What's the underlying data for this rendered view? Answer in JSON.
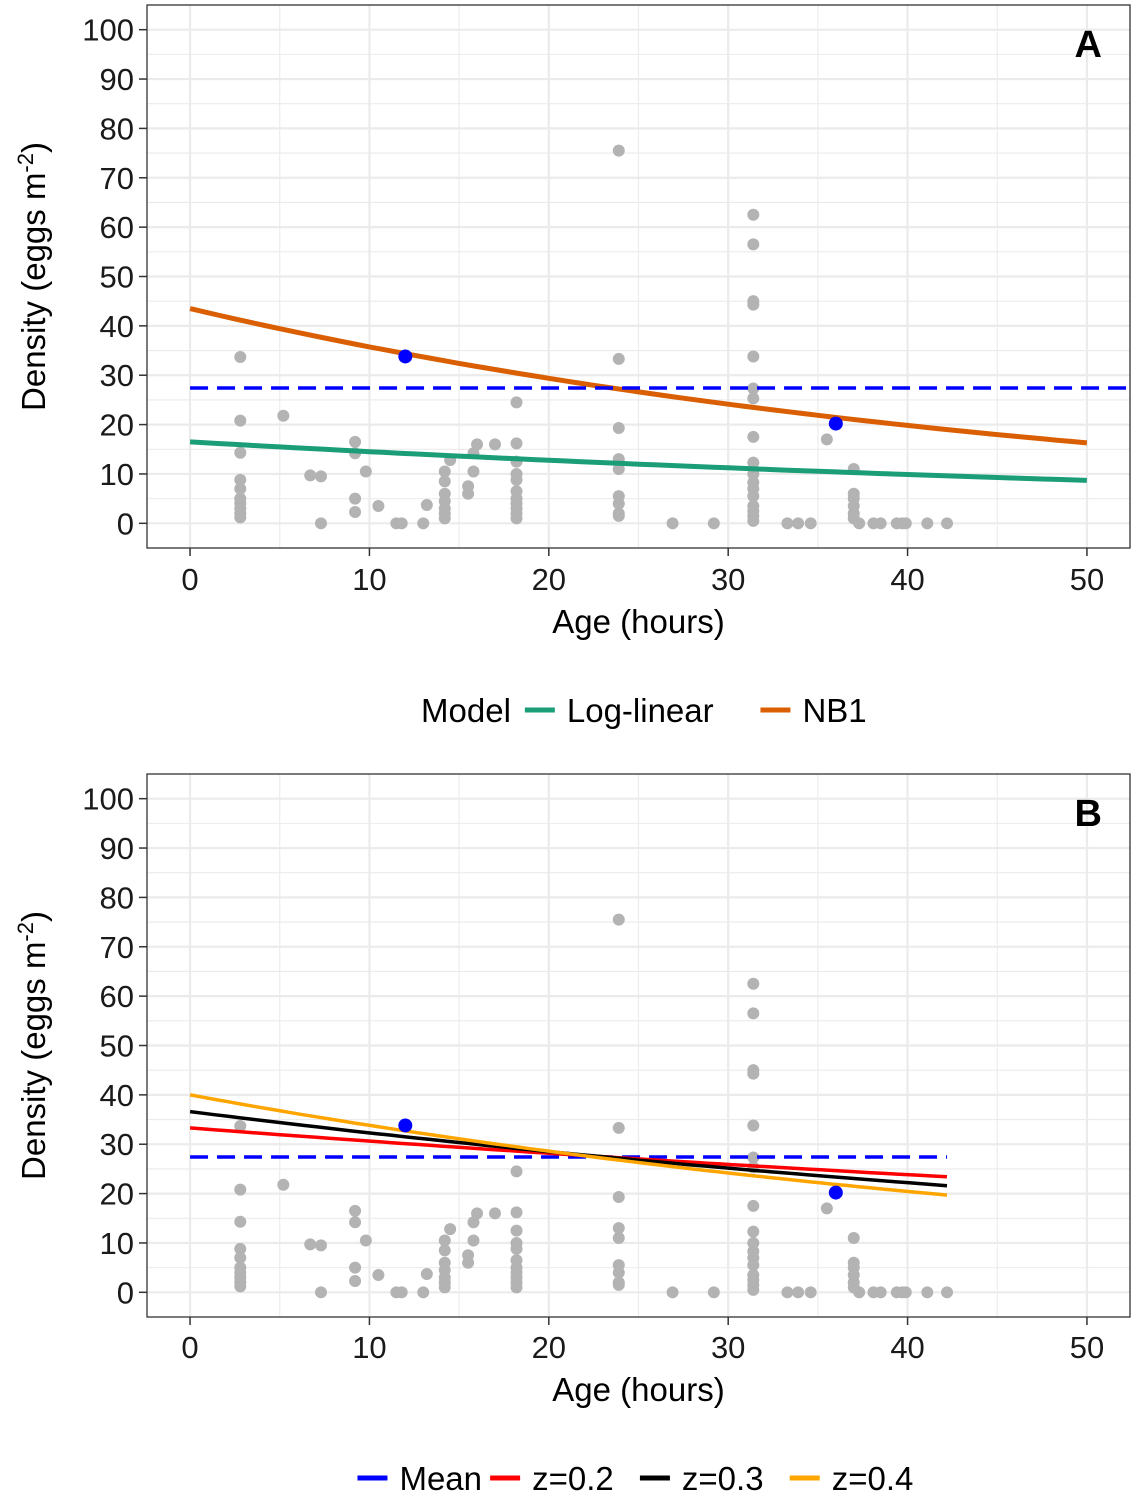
{
  "chart_data": [
    {
      "panel_label": "A",
      "type": "scatter",
      "xlabel": "Age (hours)",
      "ylabel_main": "Density (eggs m",
      "ylabel_sup": "-2",
      "ylabel_tail": ")",
      "xlim": [
        -2.4,
        52.4
      ],
      "ylim": [
        -5,
        105
      ],
      "xticks": [
        "0",
        "10",
        "20",
        "30",
        "40",
        "50"
      ],
      "yticks": [
        "0",
        "10",
        "20",
        "30",
        "40",
        "50",
        "60",
        "70",
        "80",
        "90",
        "100"
      ],
      "grid": true,
      "legend": {
        "title": "Model",
        "position": "bottom",
        "entries": [
          {
            "label": "Log-linear",
            "color": "#1B9E77"
          },
          {
            "label": "NB1",
            "color": "#D95F02"
          }
        ]
      },
      "series": [
        {
          "name": "Log-linear",
          "kind": "line",
          "color": "#1B9E77",
          "x": [
            0,
            50
          ],
          "y": [
            16.5,
            8.7
          ]
        },
        {
          "name": "NB1",
          "kind": "line",
          "color": "#D95F02",
          "x": [
            0,
            50
          ],
          "y": [
            43.5,
            16.3
          ]
        },
        {
          "kind": "hline",
          "color": "#0000FF",
          "dash": true,
          "x": [
            0,
            52.4
          ],
          "y": [
            27.4,
            27.4
          ]
        }
      ],
      "highlight_points": [
        [
          12,
          33.8
        ],
        [
          36,
          20.2
        ]
      ],
      "points": [
        [
          2.8,
          33.7
        ],
        [
          2.8,
          20.8
        ],
        [
          2.8,
          14.3
        ],
        [
          2.8,
          8.8
        ],
        [
          2.8,
          7.0
        ],
        [
          2.8,
          5.0
        ],
        [
          2.8,
          4.0
        ],
        [
          2.8,
          3.0
        ],
        [
          2.8,
          2.0
        ],
        [
          2.8,
          1.2
        ],
        [
          5.2,
          21.8
        ],
        [
          6.7,
          9.7
        ],
        [
          7.3,
          9.5
        ],
        [
          7.3,
          0
        ],
        [
          9.2,
          16.5
        ],
        [
          9.2,
          14.2
        ],
        [
          9.2,
          5.0
        ],
        [
          9.2,
          2.3
        ],
        [
          9.8,
          10.5
        ],
        [
          10.5,
          3.5
        ],
        [
          11.5,
          0
        ],
        [
          11.8,
          0
        ],
        [
          13.0,
          0
        ],
        [
          13.2,
          3.7
        ],
        [
          14.2,
          10.5
        ],
        [
          14.2,
          8.5
        ],
        [
          14.2,
          6.0
        ],
        [
          14.2,
          4.5
        ],
        [
          14.2,
          3.0
        ],
        [
          14.2,
          2.0
        ],
        [
          14.2,
          1.0
        ],
        [
          14.5,
          12.8
        ],
        [
          15.5,
          7.5
        ],
        [
          15.5,
          6.0
        ],
        [
          15.8,
          10.5
        ],
        [
          15.8,
          14.2
        ],
        [
          16.0,
          16.0
        ],
        [
          17.0,
          16.0
        ],
        [
          18.2,
          24.5
        ],
        [
          18.2,
          16.2
        ],
        [
          18.2,
          12.5
        ],
        [
          18.2,
          10.0
        ],
        [
          18.2,
          8.8
        ],
        [
          18.2,
          6.5
        ],
        [
          18.2,
          5.0
        ],
        [
          18.2,
          4.0
        ],
        [
          18.2,
          3.0
        ],
        [
          18.2,
          2.0
        ],
        [
          18.2,
          1.0
        ],
        [
          23.9,
          75.5
        ],
        [
          23.9,
          33.3
        ],
        [
          23.9,
          19.3
        ],
        [
          23.9,
          13.0
        ],
        [
          23.9,
          11.0
        ],
        [
          23.9,
          5.5
        ],
        [
          23.9,
          4.0
        ],
        [
          23.9,
          2.0
        ],
        [
          23.9,
          1.5
        ],
        [
          26.9,
          0
        ],
        [
          29.2,
          0
        ],
        [
          31.4,
          62.5
        ],
        [
          31.4,
          56.5
        ],
        [
          31.4,
          45.0
        ],
        [
          31.4,
          44.3
        ],
        [
          31.4,
          33.8
        ],
        [
          31.4,
          27.3
        ],
        [
          31.4,
          25.3
        ],
        [
          31.4,
          17.5
        ],
        [
          31.4,
          12.3
        ],
        [
          31.4,
          10.0
        ],
        [
          31.4,
          8.3
        ],
        [
          31.4,
          7.0
        ],
        [
          31.4,
          5.5
        ],
        [
          31.4,
          3.5
        ],
        [
          31.4,
          2.5
        ],
        [
          31.4,
          1.5
        ],
        [
          31.4,
          0.5
        ],
        [
          33.3,
          0
        ],
        [
          33.9,
          0
        ],
        [
          34.6,
          0
        ],
        [
          35.5,
          17.0
        ],
        [
          37.0,
          11.0
        ],
        [
          37.0,
          6.0
        ],
        [
          37.0,
          5.0
        ],
        [
          37.0,
          3.5
        ],
        [
          37.0,
          2.0
        ],
        [
          37.0,
          1.0
        ],
        [
          37.3,
          0
        ],
        [
          38.1,
          0
        ],
        [
          38.5,
          0
        ],
        [
          39.4,
          0
        ],
        [
          39.7,
          0
        ],
        [
          39.9,
          0
        ],
        [
          41.1,
          0
        ],
        [
          42.2,
          0
        ]
      ]
    },
    {
      "panel_label": "B",
      "type": "scatter",
      "xlabel": "Age (hours)",
      "ylabel_main": "Density (eggs m",
      "ylabel_sup": "-2",
      "ylabel_tail": ")",
      "xlim": [
        -2.4,
        52.4
      ],
      "ylim": [
        -5,
        105
      ],
      "xticks": [
        "0",
        "10",
        "20",
        "30",
        "40",
        "50"
      ],
      "yticks": [
        "0",
        "10",
        "20",
        "30",
        "40",
        "50",
        "60",
        "70",
        "80",
        "90",
        "100"
      ],
      "grid": true,
      "legend": {
        "title": "",
        "position": "bottom",
        "entries": [
          {
            "label": "Mean",
            "color": "#0000FF"
          },
          {
            "label": "z=0.2",
            "color": "#FF0000"
          },
          {
            "label": "z=0.3",
            "color": "#000000"
          },
          {
            "label": "z=0.4",
            "color": "#FFA500"
          }
        ]
      },
      "series": [
        {
          "name": "Mean",
          "kind": "hline",
          "color": "#0000FF",
          "dash": true,
          "x": [
            0,
            42.2
          ],
          "y": [
            27.4,
            27.4
          ]
        },
        {
          "name": "z=0.2",
          "kind": "line",
          "color": "#FF0000",
          "x": [
            0,
            42.2
          ],
          "y": [
            33.3,
            23.4
          ]
        },
        {
          "name": "z=0.3",
          "kind": "line",
          "color": "#000000",
          "x": [
            0,
            42.2
          ],
          "y": [
            36.6,
            21.6
          ]
        },
        {
          "name": "z=0.4",
          "kind": "line",
          "color": "#FFA500",
          "x": [
            0,
            42.2
          ],
          "y": [
            40.0,
            19.7
          ]
        }
      ],
      "highlight_points": [
        [
          12,
          33.8
        ],
        [
          36,
          20.2
        ]
      ],
      "points": [
        [
          2.8,
          33.7
        ],
        [
          2.8,
          20.8
        ],
        [
          2.8,
          14.3
        ],
        [
          2.8,
          8.8
        ],
        [
          2.8,
          7.0
        ],
        [
          2.8,
          5.0
        ],
        [
          2.8,
          4.0
        ],
        [
          2.8,
          3.0
        ],
        [
          2.8,
          2.0
        ],
        [
          2.8,
          1.2
        ],
        [
          5.2,
          21.8
        ],
        [
          6.7,
          9.7
        ],
        [
          7.3,
          9.5
        ],
        [
          7.3,
          0
        ],
        [
          9.2,
          16.5
        ],
        [
          9.2,
          14.2
        ],
        [
          9.2,
          5.0
        ],
        [
          9.2,
          2.3
        ],
        [
          9.8,
          10.5
        ],
        [
          10.5,
          3.5
        ],
        [
          11.5,
          0
        ],
        [
          11.8,
          0
        ],
        [
          13.0,
          0
        ],
        [
          13.2,
          3.7
        ],
        [
          14.2,
          10.5
        ],
        [
          14.2,
          8.5
        ],
        [
          14.2,
          6.0
        ],
        [
          14.2,
          4.5
        ],
        [
          14.2,
          3.0
        ],
        [
          14.2,
          2.0
        ],
        [
          14.2,
          1.0
        ],
        [
          14.5,
          12.8
        ],
        [
          15.5,
          7.5
        ],
        [
          15.5,
          6.0
        ],
        [
          15.8,
          10.5
        ],
        [
          15.8,
          14.2
        ],
        [
          16.0,
          16.0
        ],
        [
          17.0,
          16.0
        ],
        [
          18.2,
          24.5
        ],
        [
          18.2,
          16.2
        ],
        [
          18.2,
          12.5
        ],
        [
          18.2,
          10.0
        ],
        [
          18.2,
          8.8
        ],
        [
          18.2,
          6.5
        ],
        [
          18.2,
          5.0
        ],
        [
          18.2,
          4.0
        ],
        [
          18.2,
          3.0
        ],
        [
          18.2,
          2.0
        ],
        [
          18.2,
          1.0
        ],
        [
          23.9,
          75.5
        ],
        [
          23.9,
          33.3
        ],
        [
          23.9,
          19.3
        ],
        [
          23.9,
          13.0
        ],
        [
          23.9,
          11.0
        ],
        [
          23.9,
          5.5
        ],
        [
          23.9,
          4.0
        ],
        [
          23.9,
          2.0
        ],
        [
          23.9,
          1.5
        ],
        [
          26.9,
          0
        ],
        [
          29.2,
          0
        ],
        [
          31.4,
          62.5
        ],
        [
          31.4,
          56.5
        ],
        [
          31.4,
          45.0
        ],
        [
          31.4,
          44.3
        ],
        [
          31.4,
          33.8
        ],
        [
          31.4,
          27.3
        ],
        [
          31.4,
          25.3
        ],
        [
          31.4,
          17.5
        ],
        [
          31.4,
          12.3
        ],
        [
          31.4,
          10.0
        ],
        [
          31.4,
          8.3
        ],
        [
          31.4,
          7.0
        ],
        [
          31.4,
          5.5
        ],
        [
          31.4,
          3.5
        ],
        [
          31.4,
          2.5
        ],
        [
          31.4,
          1.5
        ],
        [
          31.4,
          0.5
        ],
        [
          33.3,
          0
        ],
        [
          33.9,
          0
        ],
        [
          34.6,
          0
        ],
        [
          35.5,
          17.0
        ],
        [
          37.0,
          11.0
        ],
        [
          37.0,
          6.0
        ],
        [
          37.0,
          5.0
        ],
        [
          37.0,
          3.5
        ],
        [
          37.0,
          2.0
        ],
        [
          37.0,
          1.0
        ],
        [
          37.3,
          0
        ],
        [
          38.1,
          0
        ],
        [
          38.5,
          0
        ],
        [
          39.4,
          0
        ],
        [
          39.7,
          0
        ],
        [
          39.9,
          0
        ],
        [
          41.1,
          0
        ],
        [
          42.2,
          0
        ]
      ]
    }
  ]
}
